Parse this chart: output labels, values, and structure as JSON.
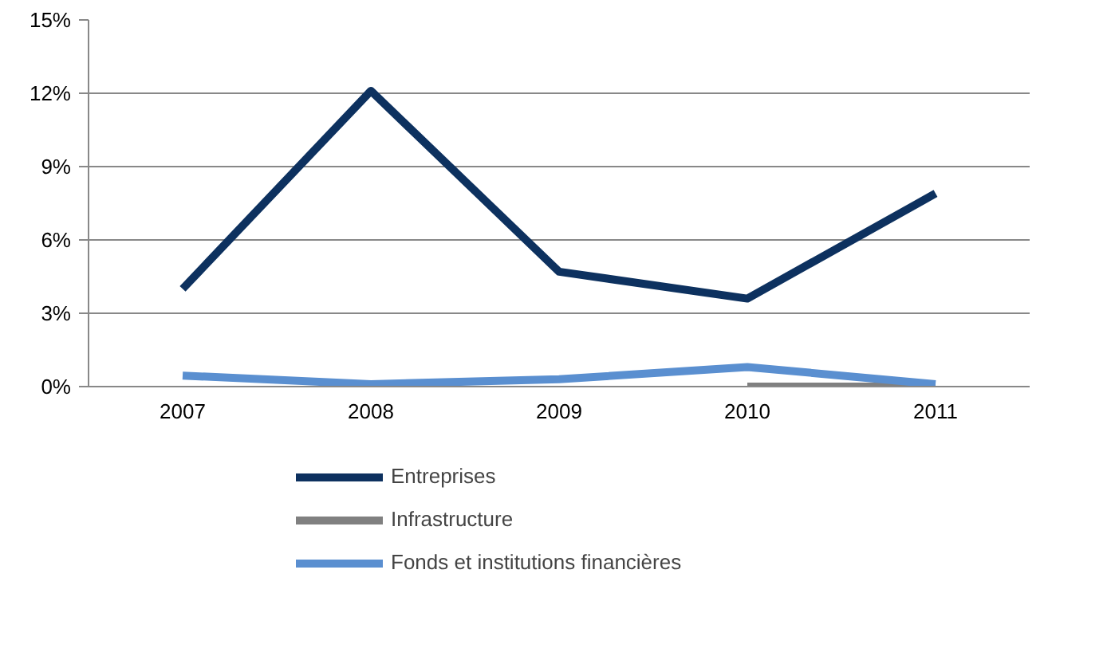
{
  "chart_data": {
    "type": "line",
    "categories": [
      "2007",
      "2008",
      "2009",
      "2010",
      "2011"
    ],
    "series": [
      {
        "name": "Entreprises",
        "color": "#0d315f",
        "values": [
          4.0,
          12.1,
          4.7,
          3.6,
          7.9
        ]
      },
      {
        "name": "Infrastructure",
        "color": "#808080",
        "values": [
          null,
          null,
          null,
          0,
          0
        ]
      },
      {
        "name": "Fonds et institutions financières",
        "color": "#5a8fd0",
        "values": [
          0.45,
          0.1,
          0.3,
          0.8,
          0.1
        ]
      }
    ],
    "ylim": [
      0,
      15
    ],
    "yticks": [
      {
        "value": 0,
        "label": "0%"
      },
      {
        "value": 3,
        "label": "3%"
      },
      {
        "value": 6,
        "label": "6%"
      },
      {
        "value": 9,
        "label": "9%"
      },
      {
        "value": 12,
        "label": "12%"
      },
      {
        "value": 15,
        "label": "15%"
      }
    ],
    "grid": "y",
    "legend": "bottom",
    "line_style": "solid",
    "marker": "none"
  }
}
